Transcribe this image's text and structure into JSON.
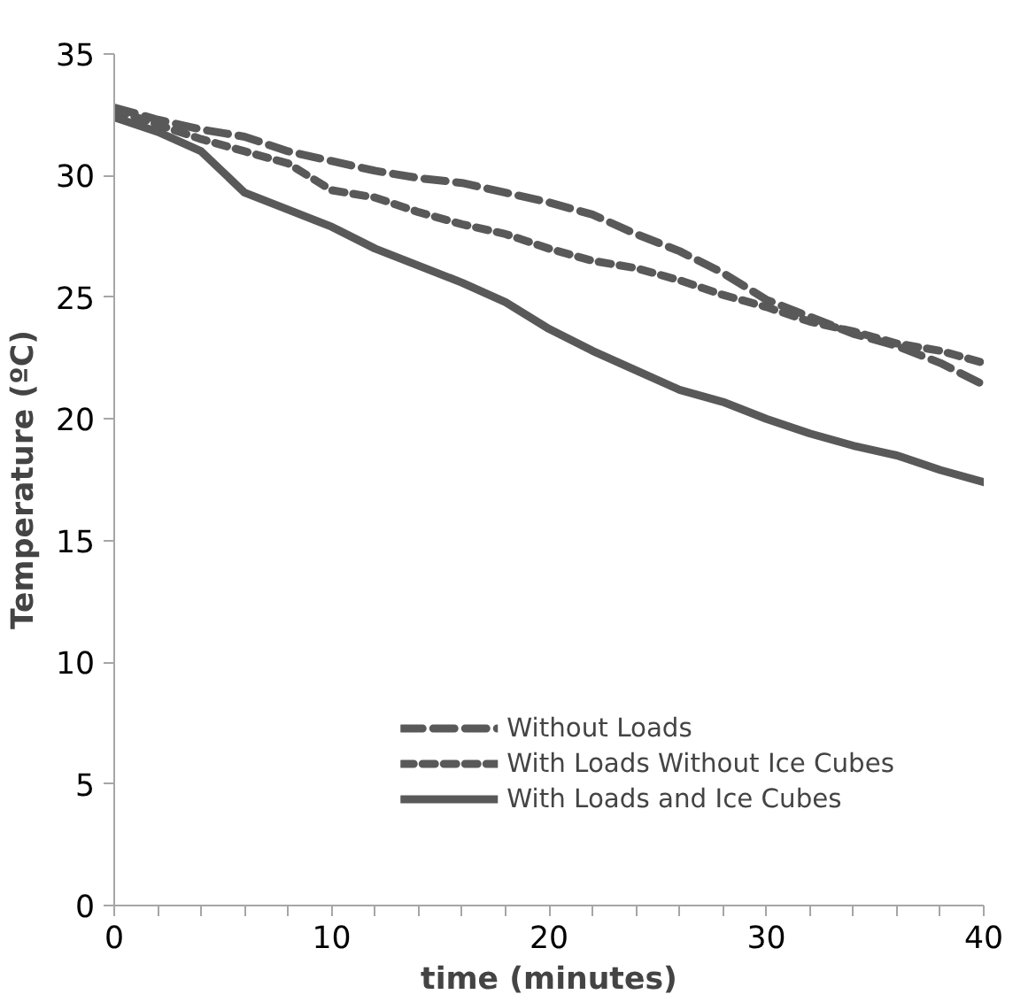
{
  "chart_data": {
    "type": "line",
    "xlabel": "time (minutes)",
    "ylabel": "Temperature (ºC)",
    "x": [
      0,
      2,
      4,
      6,
      8,
      10,
      12,
      14,
      16,
      18,
      20,
      22,
      24,
      26,
      28,
      30,
      32,
      34,
      36,
      38,
      40
    ],
    "series": [
      {
        "name": "Without Loads",
        "color": "#595959",
        "line_style": "dashed",
        "values": [
          32.8,
          32.3,
          31.9,
          31.6,
          31.0,
          30.6,
          30.2,
          29.9,
          29.7,
          29.3,
          28.9,
          28.4,
          27.6,
          26.9,
          26.0,
          24.9,
          24.2,
          23.5,
          23.0,
          22.3,
          21.4
        ]
      },
      {
        "name": "With Loads Without Ice Cubes",
        "color": "#595959",
        "line_style": "dotted",
        "values": [
          32.7,
          32.1,
          31.5,
          31.0,
          30.5,
          29.4,
          29.1,
          28.5,
          28.0,
          27.6,
          27.0,
          26.5,
          26.2,
          25.7,
          25.1,
          24.6,
          24.0,
          23.6,
          23.1,
          22.8,
          22.3
        ]
      },
      {
        "name": "With Loads and Ice Cubes",
        "color": "#595959",
        "line_style": "solid",
        "values": [
          32.4,
          31.8,
          31.0,
          29.3,
          28.6,
          27.9,
          27.0,
          26.3,
          25.6,
          24.8,
          23.7,
          22.8,
          22.0,
          21.2,
          20.7,
          20.0,
          19.4,
          18.9,
          18.5,
          17.9,
          17.4
        ]
      }
    ],
    "xlim": [
      0,
      40
    ],
    "ylim": [
      0,
      35
    ],
    "xticks": [
      0,
      {
        "value": 2,
        "label": null
      },
      {
        "value": 4,
        "label": null
      },
      {
        "value": 6,
        "label": null
      },
      {
        "value": 8,
        "label": null
      },
      10,
      {
        "value": 12,
        "label": null
      },
      {
        "value": 14,
        "label": null
      },
      {
        "value": 16,
        "label": null
      },
      {
        "value": 18,
        "label": null
      },
      20,
      {
        "value": 22,
        "label": null
      },
      {
        "value": 24,
        "label": null
      },
      {
        "value": 26,
        "label": null
      },
      {
        "value": 28,
        "label": null
      },
      30,
      {
        "value": 32,
        "label": null
      },
      {
        "value": 34,
        "label": null
      },
      {
        "value": 36,
        "label": null
      },
      {
        "value": 38,
        "label": null
      },
      40
    ],
    "yticks": [
      0,
      5,
      10,
      15,
      20,
      25,
      30,
      35
    ],
    "grid": false,
    "legend": "bottom right",
    "marker": "none"
  }
}
